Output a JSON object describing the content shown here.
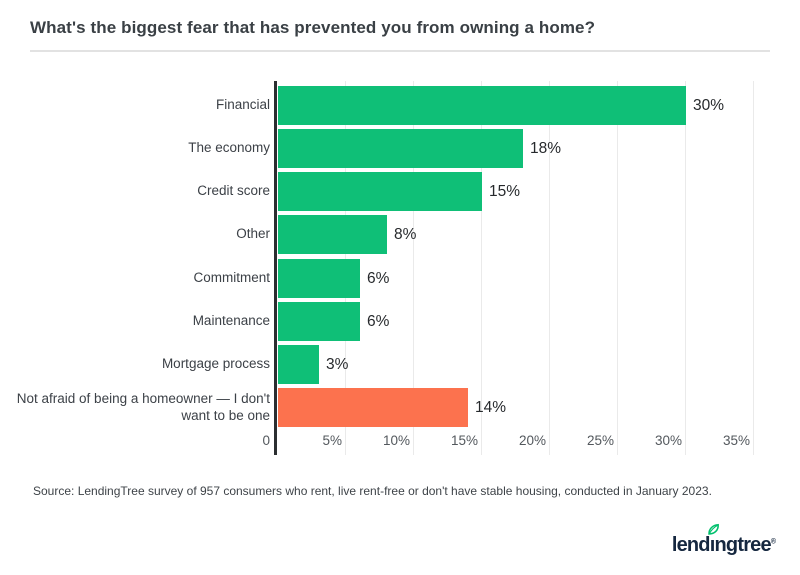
{
  "title": "What's the biggest fear that has prevented you from owning a home?",
  "chart_data": {
    "type": "bar",
    "orientation": "horizontal",
    "title": "What's the biggest fear that has prevented you from owning a home?",
    "categories": [
      "Financial",
      "The economy",
      "Credit score",
      "Other",
      "Commitment",
      "Maintenance",
      "Mortgage process",
      "Not afraid of being a homeowner — I don't want to be one"
    ],
    "values": [
      30,
      18,
      15,
      8,
      6,
      6,
      3,
      14
    ],
    "value_labels": [
      "30%",
      "18%",
      "15%",
      "8%",
      "6%",
      "6%",
      "3%",
      "14%"
    ],
    "bar_colors": [
      "#0FBF77",
      "#0FBF77",
      "#0FBF77",
      "#0FBF77",
      "#0FBF77",
      "#0FBF77",
      "#0FBF77",
      "#FC724E"
    ],
    "tick_labels": [
      "0",
      "5%",
      "10%",
      "15%",
      "20%",
      "25%",
      "30%",
      "35%"
    ],
    "tick_values": [
      0,
      5,
      10,
      15,
      20,
      25,
      30,
      35
    ],
    "xlim": [
      0,
      35
    ],
    "grid": true,
    "legend": "none"
  },
  "source": "Source: LendingTree survey of 957 consumers who rent, live rent-free or don't have stable housing, conducted in January 2023.",
  "logo": {
    "pre": "lend",
    "i": "ı",
    "post": "ngtree",
    "registered": "®"
  },
  "colors": {
    "bar_green": "#0FBF77",
    "bar_orange": "#FC724E",
    "leaf_green": "#00C06D",
    "logo_navy": "#15273F",
    "axis": "#2B2E31",
    "grid": "#EAEAEA"
  }
}
